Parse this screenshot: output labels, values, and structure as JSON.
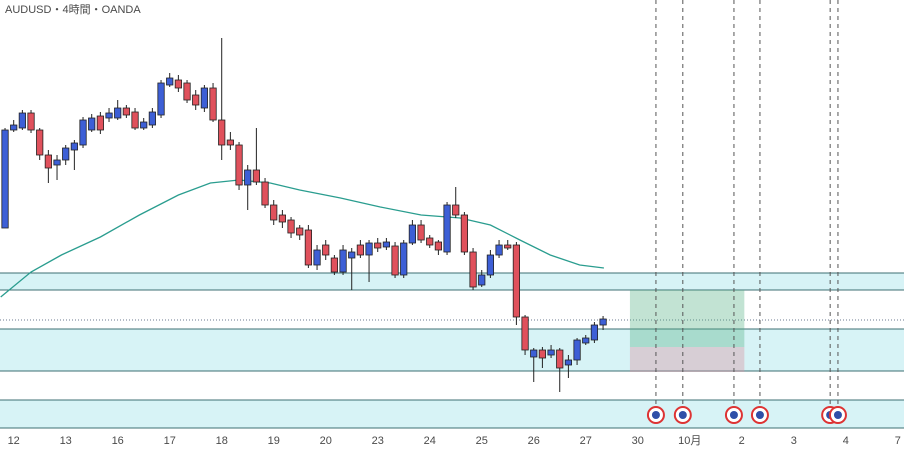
{
  "chart_data": {
    "type": "candlestick",
    "title": "AUDUSD・4時間・OANDA",
    "xlim": [
      -0.58,
      103.72
    ],
    "ylim": [
      0,
      430
    ],
    "xticks": [
      {
        "value": 1,
        "label": "12"
      },
      {
        "value": 7,
        "label": "13"
      },
      {
        "value": 13,
        "label": "16"
      },
      {
        "value": 19,
        "label": "17"
      },
      {
        "value": 25,
        "label": "18"
      },
      {
        "value": 31,
        "label": "19"
      },
      {
        "value": 37,
        "label": "20"
      },
      {
        "value": 43,
        "label": "23"
      },
      {
        "value": 49,
        "label": "24"
      },
      {
        "value": 55,
        "label": "25"
      },
      {
        "value": 61,
        "label": "26"
      },
      {
        "value": 67,
        "label": "27"
      },
      {
        "value": 73,
        "label": "30"
      },
      {
        "value": 79,
        "label": "10月"
      },
      {
        "value": 85,
        "label": "2"
      },
      {
        "value": 91,
        "label": "3"
      },
      {
        "value": 97,
        "label": "4"
      },
      {
        "value": 103,
        "label": "7"
      }
    ],
    "up_color": "#3d5fd6",
    "down_color": "#e0515c",
    "x": [
      0,
      1,
      2,
      3,
      4,
      5,
      6,
      7,
      8,
      9,
      10,
      11,
      12,
      13,
      14,
      15,
      16,
      17,
      18,
      19,
      20,
      21,
      22,
      23,
      24,
      25,
      26,
      27,
      28,
      29,
      30,
      31,
      32,
      33,
      34,
      35,
      36,
      37,
      38,
      39,
      40,
      41,
      42,
      43,
      44,
      45,
      46,
      47,
      48,
      49,
      50,
      51,
      52,
      53,
      54,
      55,
      56,
      57,
      58,
      59,
      60,
      61,
      62,
      63,
      64,
      65,
      66,
      67,
      68,
      69
    ],
    "open": [
      202,
      300,
      302,
      317,
      300,
      275,
      265,
      270,
      280,
      285,
      300,
      314,
      312,
      312,
      322,
      318,
      302,
      305,
      315,
      345,
      350,
      347,
      335,
      322,
      342,
      310,
      290,
      285,
      245,
      260,
      248,
      225,
      215,
      210,
      202,
      200,
      165,
      185,
      172,
      158,
      172,
      185,
      175,
      187,
      183,
      184,
      155,
      187,
      205,
      192,
      188,
      178,
      225,
      215,
      178,
      145,
      155,
      175,
      185,
      185,
      113,
      73,
      80,
      75,
      80,
      65,
      70,
      87,
      90,
      105
    ],
    "high": [
      302,
      310,
      320,
      320,
      302,
      280,
      275,
      285,
      290,
      313,
      316,
      318,
      322,
      330,
      325,
      322,
      312,
      322,
      350,
      357,
      355,
      350,
      340,
      345,
      347,
      392,
      298,
      288,
      265,
      302,
      252,
      230,
      220,
      213,
      205,
      205,
      185,
      190,
      175,
      185,
      182,
      190,
      190,
      192,
      192,
      188,
      190,
      210,
      210,
      195,
      190,
      228,
      243,
      218,
      182,
      160,
      180,
      190,
      190,
      188,
      115,
      82,
      83,
      85,
      82,
      75,
      92,
      95,
      108,
      114
    ],
    "low": [
      202,
      298,
      300,
      297,
      270,
      247,
      250,
      265,
      260,
      282,
      298,
      296,
      308,
      310,
      312,
      300,
      300,
      302,
      312,
      343,
      338,
      327,
      320,
      318,
      308,
      270,
      280,
      240,
      220,
      245,
      222,
      205,
      202,
      192,
      190,
      162,
      160,
      170,
      155,
      155,
      140,
      172,
      148,
      178,
      180,
      152,
      152,
      185,
      187,
      182,
      175,
      175,
      212,
      175,
      140,
      143,
      152,
      172,
      180,
      105,
      75,
      48,
      62,
      72,
      38,
      52,
      65,
      85,
      87,
      100
    ],
    "close": [
      300,
      305,
      317,
      300,
      275,
      262,
      270,
      282,
      287,
      310,
      312,
      300,
      317,
      322,
      315,
      302,
      308,
      318,
      347,
      352,
      342,
      330,
      325,
      342,
      310,
      285,
      285,
      245,
      260,
      248,
      225,
      210,
      208,
      197,
      195,
      165,
      180,
      175,
      158,
      180,
      178,
      175,
      187,
      182,
      188,
      155,
      187,
      205,
      190,
      185,
      180,
      225,
      215,
      178,
      143,
      155,
      175,
      185,
      182,
      113,
      80,
      80,
      72,
      80,
      62,
      70,
      90,
      92,
      105,
      111
    ],
    "ma": {
      "color": "#2a9d8f",
      "x": [
        -0.5,
        3,
        6.5,
        11,
        15.5,
        20,
        23.7,
        27,
        30.6,
        34,
        38.7,
        43.3,
        48,
        52.5,
        56,
        59.4,
        62.9,
        66.3,
        69.1
      ],
      "values": [
        133,
        158,
        175,
        193,
        215,
        235,
        247,
        250,
        247,
        240,
        232,
        223,
        215,
        212,
        205,
        190,
        175,
        165,
        162
      ]
    },
    "zones": [
      {
        "top": 157,
        "bottom": 140
      },
      {
        "top": 101,
        "bottom": 59
      },
      {
        "top": 30,
        "bottom": 2
      }
    ],
    "price_line": 110,
    "position": {
      "x": [
        72.1,
        85.3
      ],
      "target": 140,
      "entry": 83,
      "stop": 58
    },
    "events": [
      75.1,
      78.2,
      84.1,
      87.1,
      95.2,
      96.1
    ]
  }
}
